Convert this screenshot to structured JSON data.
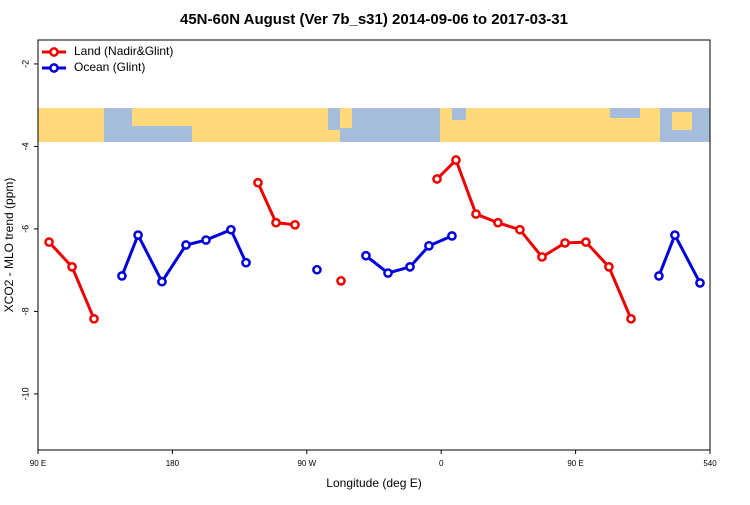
{
  "chart_data": {
    "type": "line",
    "title": "45N-60N August (Ver 7b_s31)   2014-09-06 to 2017-03-31",
    "x_label": "Longitude (deg E)",
    "y_label": "XCO2 - MLO trend (ppm)",
    "xlim": [
      90,
      540
    ],
    "xticks": [
      {
        "value": 90,
        "label": "90 E"
      },
      180,
      {
        "value": 270,
        "label": "90 W"
      },
      {
        "value": 360,
        "label": "0"
      },
      {
        "value": 450,
        "label": "90 E"
      },
      540
    ],
    "ylim": [
      -11.36,
      -1.42
    ],
    "yticks": [
      -2,
      -4,
      -6,
      -8,
      -10
    ],
    "legend": "top-left",
    "series": [
      {
        "name": "Land (Nadir&Glint)",
        "color": "#ee0000",
        "x": [
          97.4,
          112.8,
          127.5,
          null,
          237.3,
          249.4,
          262.1,
          null,
          292.9,
          null,
          357.2,
          369.9,
          383.3,
          398.0,
          412.7,
          427.5,
          442.9,
          456.9,
          472.3,
          487.1
        ],
        "values": [
          -6.32,
          -6.92,
          -8.18,
          null,
          -4.88,
          -5.85,
          -5.9,
          null,
          -7.26,
          null,
          -4.79,
          -4.33,
          -5.64,
          -5.85,
          -6.02,
          -6.68,
          -6.34,
          -6.32,
          -6.92,
          -8.18
        ]
      },
      {
        "name": "Ocean (Glint)",
        "color": "#0000dd",
        "x": [
          146.2,
          157.0,
          173.0,
          189.1,
          202.5,
          219.2,
          229.3,
          null,
          276.8,
          null,
          309.6,
          324.4,
          339.1,
          351.8,
          367.2,
          null,
          505.8,
          516.5,
          533.3
        ],
        "values": [
          -7.14,
          -6.15,
          -7.28,
          -6.39,
          -6.27,
          -6.02,
          -6.82,
          null,
          -6.99,
          null,
          -6.65,
          -7.07,
          -6.92,
          -6.41,
          -6.17,
          null,
          -7.14,
          -6.15,
          -7.31
        ]
      }
    ]
  }
}
